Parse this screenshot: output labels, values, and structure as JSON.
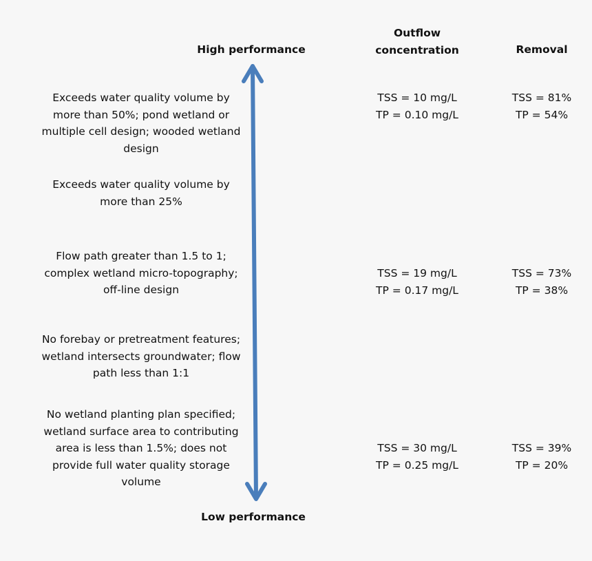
{
  "labels": {
    "high": "High performance",
    "low": "Low performance",
    "outflow_header": "Outflow\nconcentration",
    "removal_header": "Removal"
  },
  "colors": {
    "arrow": "#4a7ebb",
    "background": "#f7f7f7"
  },
  "rows": [
    {
      "criteria": "Exceeds water quality volume by\nmore than 50%; pond wetland or\nmultiple cell design; wooded wetland\ndesign",
      "outflow": "TSS = 10 mg/L\nTP = 0.10 mg/L",
      "removal": "TSS = 81%\nTP = 54%"
    },
    {
      "criteria": "Exceeds water quality volume by\nmore than 25%"
    },
    {
      "criteria": "Flow path greater than 1.5 to 1;\ncomplex wetland micro-topography;\noff-line design",
      "outflow": "TSS = 19 mg/L\nTP = 0.17 mg/L",
      "removal": "TSS = 73%\nTP = 38%"
    },
    {
      "criteria": "No forebay or pretreatment features;\nwetland intersects groundwater; flow\npath less than 1:1"
    },
    {
      "criteria": "No wetland planting plan specified;\nwetland surface area to contributing\narea is less than 1.5%; does not\nprovide full water quality storage\nvolume",
      "outflow": "TSS = 30 mg/L\nTP = 0.25 mg/L",
      "removal": "TSS = 39%\nTP = 20%"
    }
  ]
}
